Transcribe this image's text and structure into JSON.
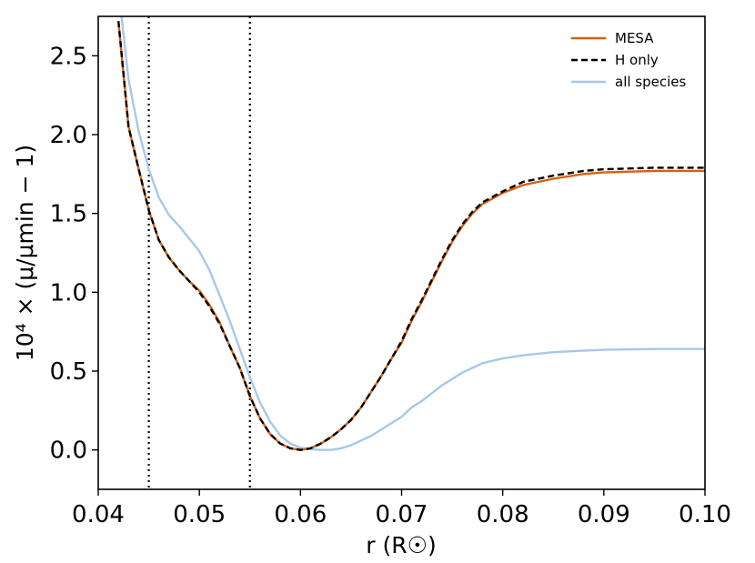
{
  "chart_data": {
    "type": "line",
    "xlabel": "r (R☉)",
    "ylabel": "10⁴ × (μ/μmin − 1)",
    "xlim": [
      0.04,
      0.1
    ],
    "ylim": [
      -0.25,
      2.75
    ],
    "xticks": [
      "0.04",
      "0.05",
      "0.06",
      "0.07",
      "0.08",
      "0.09",
      "0.10"
    ],
    "yticks": [
      "0.0",
      "0.5",
      "1.0",
      "1.5",
      "2.0",
      "2.5"
    ],
    "grid": false,
    "legend_position": "top-right",
    "vlines": [
      0.045,
      0.055
    ],
    "series": [
      {
        "name": "MESA",
        "color": "#d95f0e",
        "style": "solid",
        "points": [
          [
            0.042,
            2.72
          ],
          [
            0.043,
            2.05
          ],
          [
            0.044,
            1.78
          ],
          [
            0.045,
            1.52
          ],
          [
            0.046,
            1.33
          ],
          [
            0.047,
            1.22
          ],
          [
            0.048,
            1.14
          ],
          [
            0.049,
            1.07
          ],
          [
            0.05,
            1.01
          ],
          [
            0.051,
            0.92
          ],
          [
            0.052,
            0.81
          ],
          [
            0.053,
            0.66
          ],
          [
            0.054,
            0.52
          ],
          [
            0.055,
            0.34
          ],
          [
            0.056,
            0.2
          ],
          [
            0.057,
            0.1
          ],
          [
            0.058,
            0.04
          ],
          [
            0.059,
            0.01
          ],
          [
            0.06,
            0.0
          ],
          [
            0.061,
            0.01
          ],
          [
            0.062,
            0.04
          ],
          [
            0.063,
            0.08
          ],
          [
            0.064,
            0.13
          ],
          [
            0.065,
            0.19
          ],
          [
            0.066,
            0.27
          ],
          [
            0.067,
            0.37
          ],
          [
            0.068,
            0.47
          ],
          [
            0.069,
            0.58
          ],
          [
            0.07,
            0.68
          ],
          [
            0.071,
            0.82
          ],
          [
            0.072,
            0.94
          ],
          [
            0.073,
            1.07
          ],
          [
            0.074,
            1.2
          ],
          [
            0.075,
            1.32
          ],
          [
            0.076,
            1.42
          ],
          [
            0.077,
            1.5
          ],
          [
            0.078,
            1.56
          ],
          [
            0.08,
            1.63
          ],
          [
            0.082,
            1.68
          ],
          [
            0.085,
            1.72
          ],
          [
            0.088,
            1.75
          ],
          [
            0.09,
            1.76
          ],
          [
            0.095,
            1.77
          ],
          [
            0.1,
            1.77
          ]
        ]
      },
      {
        "name": "H only",
        "color": "#000000",
        "style": "dashed",
        "points": [
          [
            0.042,
            2.72
          ],
          [
            0.043,
            2.05
          ],
          [
            0.044,
            1.78
          ],
          [
            0.045,
            1.52
          ],
          [
            0.046,
            1.33
          ],
          [
            0.047,
            1.22
          ],
          [
            0.048,
            1.14
          ],
          [
            0.049,
            1.07
          ],
          [
            0.05,
            1.0
          ],
          [
            0.051,
            0.91
          ],
          [
            0.052,
            0.8
          ],
          [
            0.053,
            0.66
          ],
          [
            0.054,
            0.52
          ],
          [
            0.055,
            0.34
          ],
          [
            0.056,
            0.2
          ],
          [
            0.057,
            0.1
          ],
          [
            0.058,
            0.04
          ],
          [
            0.059,
            0.01
          ],
          [
            0.06,
            0.0
          ],
          [
            0.061,
            0.01
          ],
          [
            0.062,
            0.04
          ],
          [
            0.063,
            0.08
          ],
          [
            0.064,
            0.13
          ],
          [
            0.065,
            0.19
          ],
          [
            0.066,
            0.27
          ],
          [
            0.067,
            0.37
          ],
          [
            0.068,
            0.47
          ],
          [
            0.069,
            0.58
          ],
          [
            0.07,
            0.69
          ],
          [
            0.071,
            0.83
          ],
          [
            0.072,
            0.95
          ],
          [
            0.073,
            1.08
          ],
          [
            0.074,
            1.21
          ],
          [
            0.075,
            1.33
          ],
          [
            0.076,
            1.43
          ],
          [
            0.077,
            1.51
          ],
          [
            0.078,
            1.57
          ],
          [
            0.08,
            1.64
          ],
          [
            0.082,
            1.7
          ],
          [
            0.085,
            1.74
          ],
          [
            0.088,
            1.77
          ],
          [
            0.09,
            1.78
          ],
          [
            0.095,
            1.79
          ],
          [
            0.1,
            1.79
          ]
        ]
      },
      {
        "name": "all species",
        "color": "#a6c8ea",
        "style": "solid",
        "points": [
          [
            0.0423,
            2.75
          ],
          [
            0.043,
            2.35
          ],
          [
            0.044,
            2.02
          ],
          [
            0.045,
            1.78
          ],
          [
            0.046,
            1.6
          ],
          [
            0.047,
            1.49
          ],
          [
            0.048,
            1.42
          ],
          [
            0.049,
            1.34
          ],
          [
            0.05,
            1.26
          ],
          [
            0.051,
            1.14
          ],
          [
            0.052,
            0.98
          ],
          [
            0.053,
            0.82
          ],
          [
            0.054,
            0.64
          ],
          [
            0.055,
            0.46
          ],
          [
            0.056,
            0.3
          ],
          [
            0.057,
            0.18
          ],
          [
            0.058,
            0.09
          ],
          [
            0.059,
            0.04
          ],
          [
            0.06,
            0.015
          ],
          [
            0.061,
            0.005
          ],
          [
            0.062,
            0.0
          ],
          [
            0.063,
            0.0
          ],
          [
            0.064,
            0.01
          ],
          [
            0.065,
            0.03
          ],
          [
            0.066,
            0.06
          ],
          [
            0.067,
            0.09
          ],
          [
            0.068,
            0.13
          ],
          [
            0.069,
            0.17
          ],
          [
            0.07,
            0.21
          ],
          [
            0.071,
            0.27
          ],
          [
            0.072,
            0.31
          ],
          [
            0.073,
            0.36
          ],
          [
            0.074,
            0.41
          ],
          [
            0.075,
            0.45
          ],
          [
            0.076,
            0.49
          ],
          [
            0.077,
            0.52
          ],
          [
            0.078,
            0.55
          ],
          [
            0.08,
            0.58
          ],
          [
            0.082,
            0.6
          ],
          [
            0.085,
            0.62
          ],
          [
            0.088,
            0.63
          ],
          [
            0.09,
            0.635
          ],
          [
            0.095,
            0.64
          ],
          [
            0.1,
            0.64
          ]
        ]
      }
    ]
  }
}
